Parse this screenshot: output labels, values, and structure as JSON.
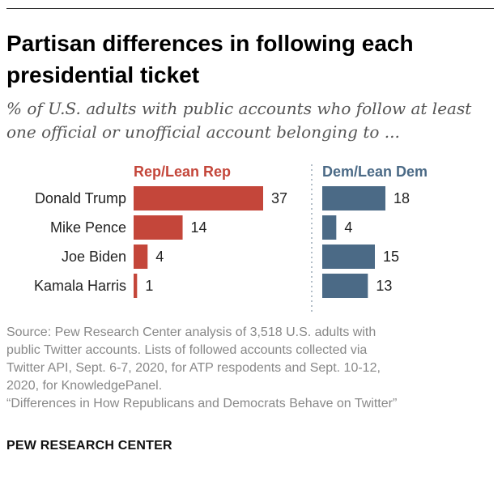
{
  "title": "Partisan differences in following each presidential ticket",
  "subtitle": "% of U.S. adults with public accounts who follow at least one official or unofficial account belonging to ...",
  "chart_data": {
    "type": "bar",
    "orientation": "horizontal",
    "categories": [
      "Donald Trump",
      "Mike Pence",
      "Joe Biden",
      "Kamala Harris"
    ],
    "series": [
      {
        "name": "Rep/Lean Rep",
        "values": [
          37,
          14,
          4,
          1
        ],
        "color": "#c4463a"
      },
      {
        "name": "Dem/Lean Dem",
        "values": [
          18,
          4,
          15,
          13
        ],
        "color": "#4b6a86"
      }
    ],
    "layout": "side-by-side panels",
    "grid": false
  },
  "source_lines": [
    "Source: Pew Research Center analysis of 3,518 U.S. adults with",
    "public Twitter accounts. Lists of followed accounts collected via",
    "Twitter API, Sept. 6-7, 2020, for ATP respodents and Sept. 10-12,",
    "2020, for KnowledgePanel.",
    "“Differences in How Republicans and Democrats Behave on Twitter”"
  ],
  "footer": "PEW RESEARCH CENTER"
}
